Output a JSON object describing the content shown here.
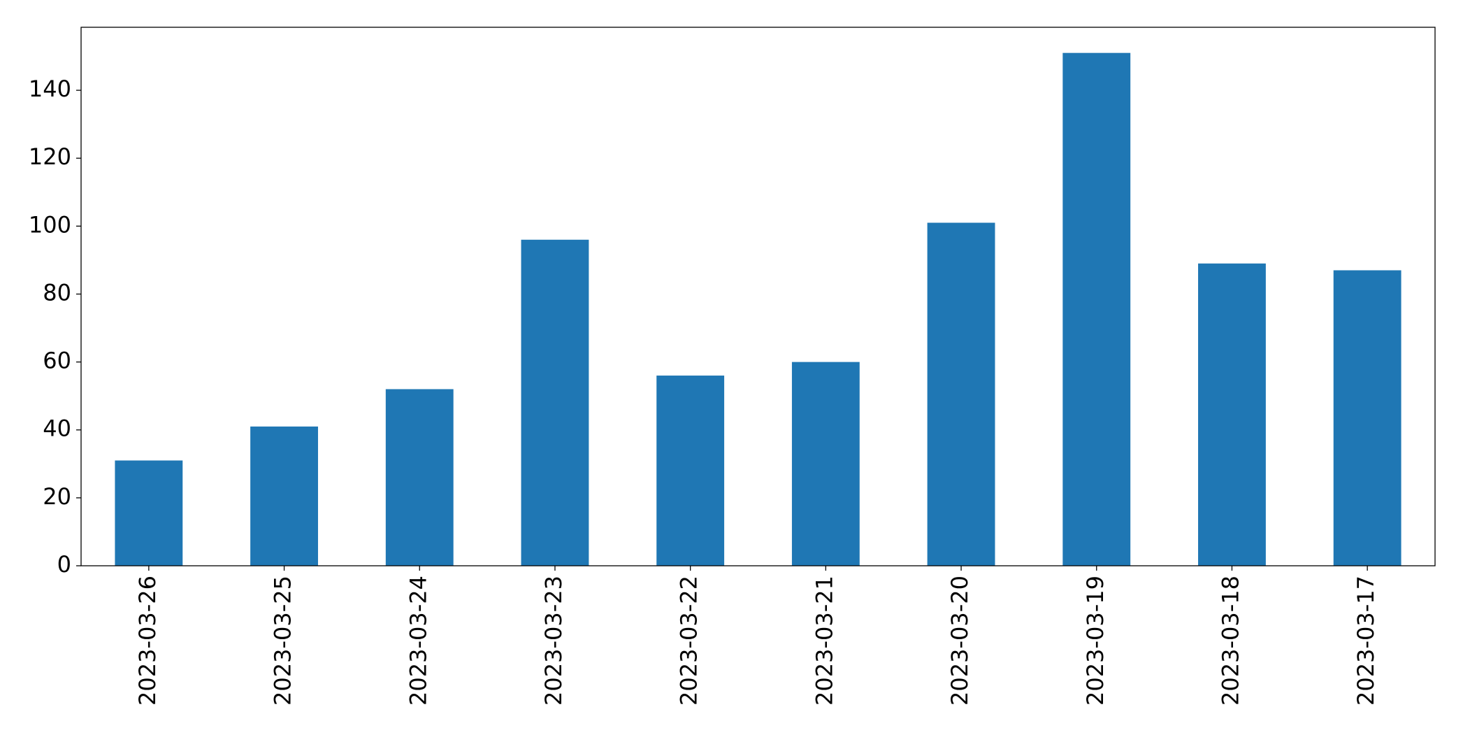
{
  "chart_data": {
    "type": "bar",
    "categories": [
      "2023-03-26",
      "2023-03-25",
      "2023-03-24",
      "2023-03-23",
      "2023-03-22",
      "2023-03-21",
      "2023-03-20",
      "2023-03-19",
      "2023-03-18",
      "2023-03-17"
    ],
    "values": [
      31,
      41,
      52,
      96,
      56,
      60,
      101,
      151,
      89,
      87
    ],
    "color": "#1f77b4",
    "ylim": [
      0,
      158.55
    ],
    "yticks": [
      0,
      20,
      40,
      60,
      80,
      100,
      120,
      140
    ],
    "grid": false
  }
}
